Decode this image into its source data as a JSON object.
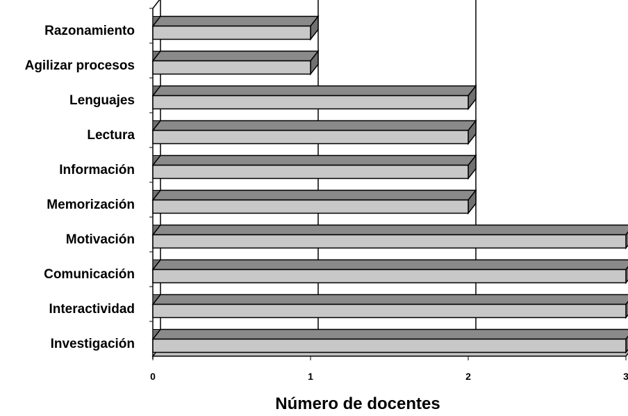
{
  "chart_data": {
    "type": "bar",
    "orientation": "horizontal",
    "style": "3d",
    "categories": [
      "Razonamiento",
      "Agilizar procesos",
      "Lenguajes",
      "Lectura",
      "Información",
      "Memorización",
      "Motivación",
      "Comunicación",
      "Interactividad",
      "Investigación"
    ],
    "values": [
      1,
      1,
      2,
      2,
      2,
      2,
      3,
      3,
      3,
      3
    ],
    "xlabel": "Número de docentes",
    "xticks": [
      "0",
      "1",
      "2",
      "3"
    ],
    "xlim": [
      0,
      3
    ],
    "grid": true,
    "legend": "none",
    "colors": {
      "bar_front": "#c8c8c8",
      "bar_top": "#8a8a8a",
      "bar_side": "#707070",
      "floor": "#c0c0c0",
      "floor_side": "#8a8a8a",
      "outline": "#000000"
    }
  }
}
